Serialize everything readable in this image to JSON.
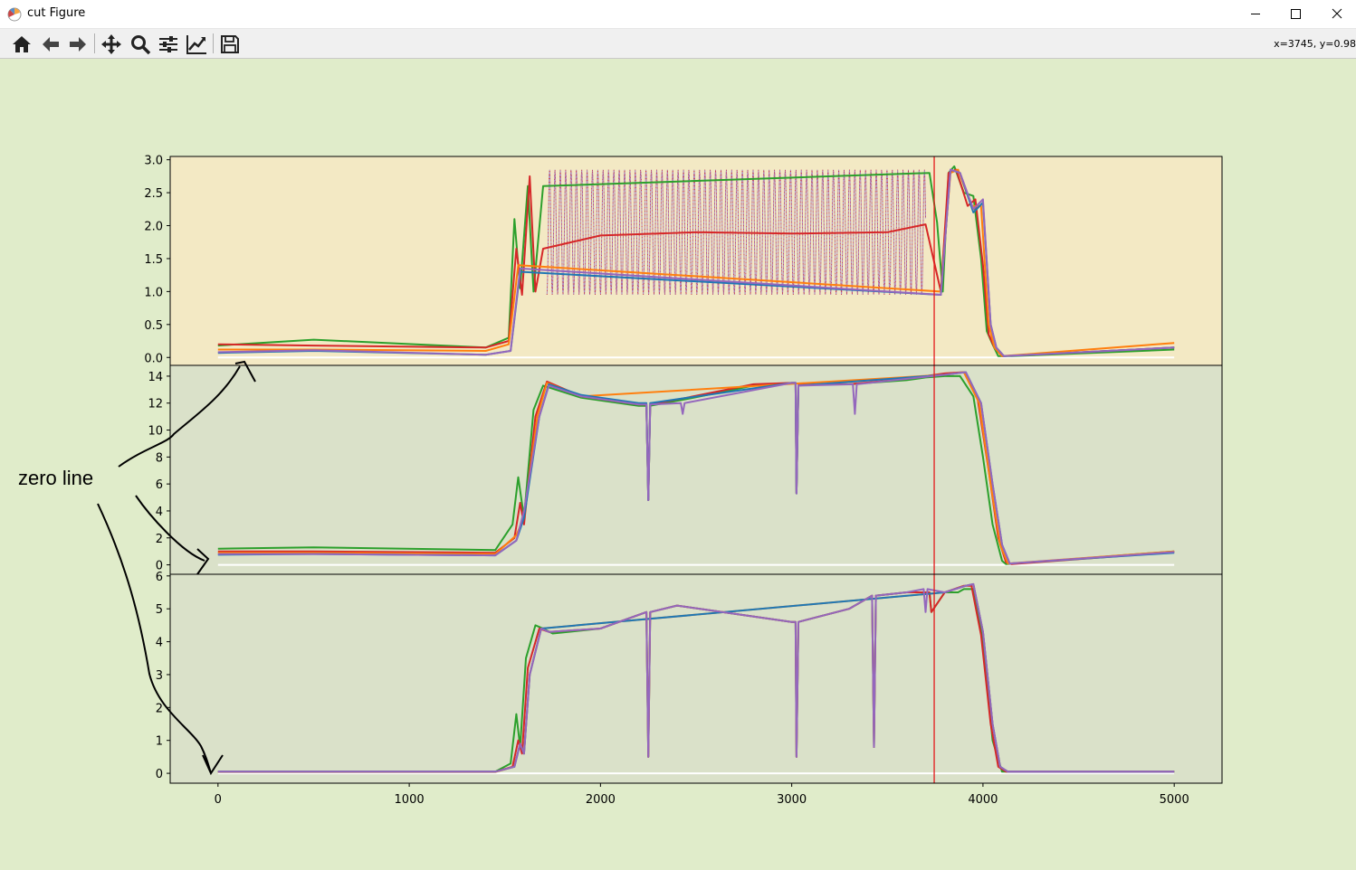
{
  "window": {
    "title": "cut Figure",
    "icons": {
      "app": "matplotlib-icon",
      "minimize": "minimize-icon",
      "maximize": "maximize-icon",
      "close": "close-icon"
    }
  },
  "toolbar": {
    "buttons": [
      {
        "name": "home",
        "icon": "home-icon"
      },
      {
        "name": "back",
        "icon": "arrow-left-icon"
      },
      {
        "name": "forward",
        "icon": "arrow-right-icon"
      },
      {
        "name": "pan",
        "icon": "move-icon"
      },
      {
        "name": "zoom",
        "icon": "magnifier-icon"
      },
      {
        "name": "subplots",
        "icon": "sliders-icon"
      },
      {
        "name": "edit-axes",
        "icon": "line-chart-icon"
      },
      {
        "name": "save",
        "icon": "floppy-disk-icon"
      }
    ],
    "coordinates": "x=3745, y=0.98"
  },
  "colors": {
    "background": "#e0ecca",
    "panel1_bg": "#f3e9c4",
    "panel2_bg": "#dae1c9",
    "panel3_bg": "#dae1c9",
    "series": {
      "green": "#2ca02c",
      "red": "#d62728",
      "orange": "#ff7f0e",
      "purple": "#9467bd",
      "blue": "#1f77b4"
    },
    "cursor": "#e31a1c",
    "zero_line": "#ffffff"
  },
  "annotation": {
    "text": "zero line"
  },
  "chart_data": [
    {
      "type": "line",
      "title": "",
      "xlim": [
        -250,
        5250
      ],
      "ylim": [
        -0.12,
        3.05
      ],
      "yticks": [
        0.0,
        0.5,
        1.0,
        1.5,
        2.0,
        2.5,
        3.0
      ],
      "ytick_labels": [
        "0.0",
        "0.5",
        "1.0",
        "1.5",
        "2.0",
        "2.5",
        "3.0"
      ],
      "zero_line": {
        "x": [
          0,
          5000
        ],
        "y": 0
      },
      "cursor_x": 3745,
      "oscillation": {
        "x_start": 1720,
        "x_end": 3700,
        "period": 28,
        "low": 0.95,
        "high": 2.85
      },
      "series": [
        {
          "color": "green",
          "x": [
            0,
            500,
            1400,
            1520,
            1550,
            1580,
            1620,
            1650,
            1700,
            3720,
            3760,
            3790,
            3820,
            3850,
            3900,
            3950,
            3990,
            4020,
            4050,
            4080,
            4150,
            5000
          ],
          "y": [
            0.18,
            0.27,
            0.15,
            0.3,
            2.1,
            1.05,
            2.6,
            1.0,
            2.6,
            2.8,
            2.05,
            1.0,
            2.8,
            2.9,
            2.5,
            2.45,
            1.5,
            0.4,
            0.2,
            0.02,
            0.02,
            0.12
          ]
        },
        {
          "color": "red",
          "x": [
            0,
            500,
            1400,
            1520,
            1560,
            1590,
            1630,
            1660,
            1700,
            2000,
            2500,
            3000,
            3500,
            3700,
            3780,
            3820,
            3860,
            3920,
            3960,
            4000,
            4030,
            4060,
            4100,
            5000
          ],
          "y": [
            0.2,
            0.18,
            0.15,
            0.25,
            1.65,
            0.95,
            2.75,
            1.0,
            1.65,
            1.85,
            1.9,
            1.88,
            1.9,
            2.02,
            1.0,
            2.8,
            2.85,
            2.3,
            2.4,
            1.4,
            0.35,
            0.15,
            0.02,
            0.15
          ]
        },
        {
          "color": "orange",
          "x": [
            0,
            500,
            1400,
            1520,
            1570,
            3780,
            3830,
            3870,
            3940,
            3990,
            4030,
            4060,
            4100,
            5000
          ],
          "y": [
            0.12,
            0.12,
            0.1,
            0.2,
            1.4,
            1.0,
            2.8,
            2.85,
            2.3,
            2.3,
            0.5,
            0.15,
            0.02,
            0.22
          ]
        },
        {
          "color": "blue",
          "x": [
            0,
            500,
            1400,
            1530,
            1580,
            3780,
            3830,
            3880,
            3950,
            4000,
            4040,
            4070,
            4110,
            5000
          ],
          "y": [
            0.07,
            0.1,
            0.04,
            0.1,
            1.3,
            0.95,
            2.85,
            2.8,
            2.2,
            2.35,
            0.5,
            0.15,
            0.02,
            0.15
          ]
        },
        {
          "color": "purple",
          "x": [
            0,
            500,
            1400,
            1530,
            1580,
            3780,
            3830,
            3880,
            3950,
            4000,
            4040,
            4070,
            4110,
            5000
          ],
          "y": [
            0.08,
            0.11,
            0.04,
            0.1,
            1.35,
            0.95,
            2.85,
            2.8,
            2.25,
            2.4,
            0.5,
            0.15,
            0.02,
            0.15
          ]
        }
      ]
    },
    {
      "type": "line",
      "title": "",
      "xlim": [
        -250,
        5250
      ],
      "ylim": [
        -0.7,
        14.8
      ],
      "yticks": [
        0,
        2,
        4,
        6,
        8,
        10,
        12,
        14
      ],
      "ytick_labels": [
        "0",
        "2",
        "4",
        "6",
        "8",
        "10",
        "12",
        "14"
      ],
      "zero_line": {
        "x": [
          0,
          5000
        ],
        "y": 0
      },
      "cursor_x": 3745,
      "series": [
        {
          "color": "green",
          "x": [
            0,
            500,
            1450,
            1540,
            1570,
            1600,
            1650,
            1700,
            1900,
            2200,
            2240,
            2250,
            2260,
            2450,
            2800,
            3000,
            3020,
            3025,
            3035,
            3040,
            3300,
            3600,
            3700,
            3800,
            3880,
            3950,
            4000,
            4050,
            4100,
            4120,
            5000
          ],
          "y": [
            1.2,
            1.3,
            1.1,
            3.0,
            6.5,
            3.5,
            11.5,
            13.3,
            12.4,
            11.8,
            11.8,
            4.8,
            11.8,
            12.3,
            13.3,
            13.5,
            13.5,
            5.3,
            13.3,
            13.4,
            13.4,
            13.7,
            13.9,
            14.0,
            14.0,
            12.5,
            8.0,
            3.0,
            0.3,
            0.05,
            1.0
          ]
        },
        {
          "color": "red",
          "x": [
            0,
            500,
            1450,
            1550,
            1580,
            1600,
            1660,
            1720,
            1900,
            2200,
            2240,
            2250,
            2260,
            2450,
            2800,
            3000,
            3020,
            3025,
            3035,
            3040,
            3300,
            3600,
            3700,
            3800,
            3900,
            3970,
            4030,
            4080,
            4120,
            4150,
            5000
          ],
          "y": [
            1.0,
            1.0,
            0.9,
            2.0,
            4.6,
            3.0,
            11.0,
            13.6,
            12.5,
            11.9,
            11.9,
            4.8,
            11.9,
            12.4,
            13.4,
            13.5,
            13.5,
            5.3,
            13.3,
            13.4,
            13.4,
            13.8,
            14.0,
            14.2,
            14.3,
            12.5,
            7.0,
            2.0,
            0.2,
            0.05,
            0.95
          ]
        },
        {
          "color": "orange",
          "x": [
            0,
            500,
            1450,
            1560,
            1600,
            1670,
            1720,
            1900,
            3800,
            3900,
            3980,
            4040,
            4090,
            4130,
            5000
          ],
          "y": [
            0.9,
            0.9,
            0.8,
            2.2,
            3.5,
            11.0,
            13.5,
            12.5,
            14.1,
            14.3,
            12.0,
            6.0,
            1.5,
            0.1,
            1.0
          ]
        },
        {
          "color": "blue",
          "x": [
            0,
            500,
            1450,
            1560,
            1600,
            1680,
            1730,
            1900,
            2200,
            2240,
            2250,
            2260,
            3000,
            3020,
            3025,
            3035,
            3800,
            3910,
            3990,
            4050,
            4100,
            4140,
            5000
          ],
          "y": [
            0.75,
            0.8,
            0.7,
            1.8,
            3.5,
            11.0,
            13.4,
            12.6,
            12.0,
            12.0,
            4.8,
            12.0,
            13.5,
            13.5,
            5.3,
            13.3,
            14.1,
            14.3,
            12.0,
            6.0,
            1.5,
            0.1,
            0.9
          ]
        },
        {
          "color": "purple",
          "x": [
            0,
            500,
            1450,
            1560,
            1600,
            1680,
            1730,
            1900,
            2200,
            2240,
            2250,
            2260,
            2420,
            2430,
            2440,
            3000,
            3020,
            3025,
            3035,
            3320,
            3330,
            3340,
            3800,
            3910,
            3990,
            4050,
            4100,
            4140,
            5000
          ],
          "y": [
            0.8,
            0.8,
            0.7,
            1.8,
            4.0,
            11.0,
            13.3,
            12.5,
            11.9,
            11.9,
            4.8,
            11.9,
            12.0,
            11.2,
            12.0,
            13.5,
            13.5,
            5.3,
            13.3,
            13.4,
            11.2,
            13.4,
            14.1,
            14.3,
            12.0,
            6.0,
            1.5,
            0.1,
            0.95
          ]
        }
      ]
    },
    {
      "type": "line",
      "title": "",
      "xlim": [
        -250,
        5250
      ],
      "ylim": [
        -0.3,
        6.05
      ],
      "yticks": [
        0,
        1,
        2,
        3,
        4,
        5,
        6
      ],
      "ytick_labels": [
        "0",
        "1",
        "2",
        "3",
        "4",
        "5",
        "6"
      ],
      "xticks": [
        0,
        1000,
        2000,
        3000,
        4000,
        5000
      ],
      "xtick_labels": [
        "0",
        "1000",
        "2000",
        "3000",
        "4000",
        "5000"
      ],
      "zero_line": {
        "x": [
          0,
          5000
        ],
        "y": 0
      },
      "cursor_x": 3745,
      "series": [
        {
          "color": "green",
          "x": [
            0,
            1450,
            1530,
            1560,
            1580,
            1610,
            1660,
            1700,
            1750,
            2000,
            2240,
            2250,
            2260,
            2400,
            3000,
            3020,
            3025,
            3035,
            3300,
            3420,
            3430,
            3440,
            3600,
            3700,
            3720,
            3730,
            3800,
            3870,
            3900,
            3950,
            4000,
            4050,
            4100,
            5000
          ],
          "y": [
            0.05,
            0.05,
            0.3,
            1.8,
            0.8,
            3.5,
            4.5,
            4.4,
            4.25,
            4.4,
            4.9,
            0.5,
            4.9,
            5.1,
            4.6,
            4.6,
            0.5,
            4.6,
            5.0,
            5.4,
            0.8,
            5.4,
            5.5,
            5.5,
            5.5,
            4.9,
            5.5,
            5.5,
            5.6,
            5.6,
            4.0,
            1.0,
            0.05,
            0.05
          ]
        },
        {
          "color": "red",
          "x": [
            0,
            1450,
            1540,
            1570,
            1590,
            1620,
            1680,
            1730,
            2000,
            2240,
            2250,
            2260,
            2400,
            3000,
            3020,
            3025,
            3035,
            3300,
            3420,
            3430,
            3440,
            3600,
            3700,
            3720,
            3730,
            3800,
            3900,
            3940,
            3990,
            4040,
            4080,
            4120,
            5000
          ],
          "y": [
            0.05,
            0.05,
            0.2,
            1.0,
            0.6,
            3.2,
            4.4,
            4.3,
            4.4,
            4.9,
            0.5,
            4.9,
            5.1,
            4.6,
            4.6,
            0.5,
            4.6,
            5.0,
            5.4,
            0.8,
            5.4,
            5.5,
            5.5,
            5.5,
            4.9,
            5.5,
            5.7,
            5.7,
            4.2,
            1.5,
            0.2,
            0.05,
            0.05
          ]
        },
        {
          "color": "orange",
          "x": [
            0,
            1450,
            1550,
            1580,
            1600,
            1630,
            1690,
            3800,
            3910,
            3950,
            4000,
            4050,
            4090,
            4130,
            5000
          ],
          "y": [
            0.04,
            0.04,
            0.2,
            0.9,
            0.6,
            3.0,
            4.4,
            5.5,
            5.7,
            5.75,
            4.3,
            1.5,
            0.2,
            0.05,
            0.05
          ]
        },
        {
          "color": "blue",
          "x": [
            0,
            1450,
            1550,
            1580,
            1600,
            1630,
            1690,
            3800,
            3910,
            3950,
            4000,
            4050,
            4090,
            4130,
            5000
          ],
          "y": [
            0.05,
            0.05,
            0.2,
            0.9,
            0.6,
            3.0,
            4.4,
            5.5,
            5.7,
            5.75,
            4.3,
            1.5,
            0.2,
            0.05,
            0.05
          ]
        },
        {
          "color": "purple",
          "x": [
            0,
            1450,
            1550,
            1580,
            1600,
            1630,
            1690,
            1730,
            2000,
            2240,
            2250,
            2260,
            2400,
            3000,
            3020,
            3025,
            3035,
            3300,
            3420,
            3430,
            3440,
            3600,
            3690,
            3700,
            3710,
            3800,
            3910,
            3950,
            4000,
            4050,
            4090,
            4130,
            5000
          ],
          "y": [
            0.05,
            0.05,
            0.2,
            0.9,
            0.6,
            3.0,
            4.4,
            4.3,
            4.4,
            4.9,
            0.5,
            4.9,
            5.1,
            4.6,
            4.6,
            0.5,
            4.6,
            5.0,
            5.4,
            0.8,
            5.4,
            5.5,
            5.6,
            4.9,
            5.6,
            5.5,
            5.7,
            5.75,
            4.3,
            1.5,
            0.2,
            0.05,
            0.05
          ]
        }
      ]
    }
  ]
}
